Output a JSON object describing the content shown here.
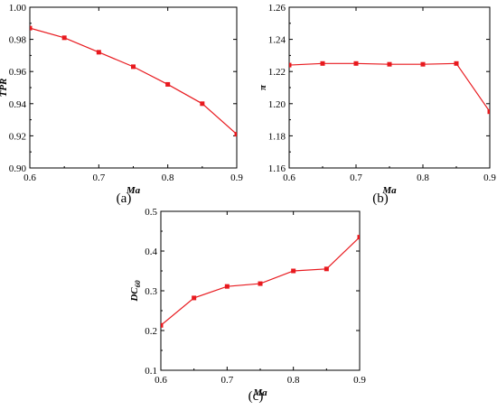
{
  "chart_data": [
    {
      "type": "line",
      "panel_label": "(a)",
      "xlabel": "Ma",
      "ylabel": "TPR",
      "ylabel_sub": "",
      "xlim": [
        0.6,
        0.9
      ],
      "ylim": [
        0.9,
        1.0
      ],
      "xticks": [
        0.6,
        0.7,
        0.8,
        0.9
      ],
      "xtick_labels": [
        "0.6",
        "0.7",
        "0.8",
        "0.9"
      ],
      "yticks": [
        0.9,
        0.92,
        0.94,
        0.96,
        0.98,
        1.0
      ],
      "ytick_labels": [
        "0.90",
        "0.92",
        "0.94",
        "0.96",
        "0.98",
        "1.00"
      ],
      "grid": false,
      "color": "#e8191e",
      "x": [
        0.6,
        0.65,
        0.7,
        0.75,
        0.8,
        0.85,
        0.9
      ],
      "y": [
        0.987,
        0.981,
        0.972,
        0.963,
        0.952,
        0.94,
        0.921
      ]
    },
    {
      "type": "line",
      "panel_label": "(b)",
      "xlabel": "Ma",
      "ylabel": "π",
      "ylabel_sub": "",
      "xlim": [
        0.6,
        0.9
      ],
      "ylim": [
        1.16,
        1.26
      ],
      "xticks": [
        0.6,
        0.7,
        0.8,
        0.9
      ],
      "xtick_labels": [
        "0.6",
        "0.7",
        "0.8",
        "0.9"
      ],
      "yticks": [
        1.16,
        1.18,
        1.2,
        1.22,
        1.24,
        1.26
      ],
      "ytick_labels": [
        "1.16",
        "1.18",
        "1.20",
        "1.22",
        "1.24",
        "1.26"
      ],
      "grid": false,
      "color": "#e8191e",
      "x": [
        0.6,
        0.65,
        0.7,
        0.75,
        0.8,
        0.85,
        0.9
      ],
      "y": [
        1.224,
        1.225,
        1.225,
        1.2245,
        1.2245,
        1.225,
        1.195
      ]
    },
    {
      "type": "line",
      "panel_label": "(c)",
      "xlabel": "Ma",
      "ylabel": "DC",
      "ylabel_sub": "60",
      "xlim": [
        0.6,
        0.9
      ],
      "ylim": [
        0.1,
        0.5
      ],
      "xticks": [
        0.6,
        0.7,
        0.8,
        0.9
      ],
      "xtick_labels": [
        "0.6",
        "0.7",
        "0.8",
        "0.9"
      ],
      "yticks": [
        0.1,
        0.2,
        0.3,
        0.4,
        0.5
      ],
      "ytick_labels": [
        "0.1",
        "0.2",
        "0.3",
        "0.4",
        "0.5"
      ],
      "grid": false,
      "color": "#e8191e",
      "x": [
        0.6,
        0.65,
        0.7,
        0.75,
        0.8,
        0.85,
        0.9
      ],
      "y": [
        0.213,
        0.282,
        0.311,
        0.318,
        0.35,
        0.355,
        0.435
      ]
    }
  ]
}
